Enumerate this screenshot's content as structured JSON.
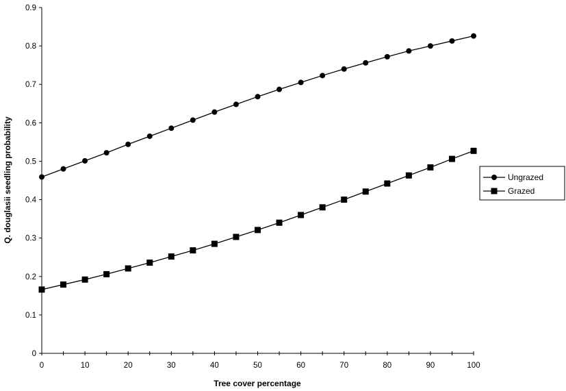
{
  "chart_data": {
    "type": "line",
    "title": "",
    "xlabel": "Tree cover percentage",
    "ylabel": "Q. douglasii seedling probability",
    "xlim": [
      0,
      100
    ],
    "ylim": [
      0,
      0.9
    ],
    "x_ticks": [
      "0",
      "10",
      "20",
      "30",
      "40",
      "50",
      "60",
      "70",
      "80",
      "90",
      "100"
    ],
    "y_ticks": [
      "0",
      "0.1",
      "0.2",
      "0.3",
      "0.4",
      "0.5",
      "0.6",
      "0.7",
      "0.8",
      "0.9"
    ],
    "x_tick_values": [
      0,
      10,
      20,
      30,
      40,
      50,
      60,
      70,
      80,
      90,
      100
    ],
    "y_tick_values": [
      0,
      0.1,
      0.2,
      0.3,
      0.4,
      0.5,
      0.6,
      0.7,
      0.8,
      0.9
    ],
    "grid": false,
    "legend_position": "right",
    "x": [
      0,
      5,
      10,
      15,
      20,
      25,
      30,
      35,
      40,
      45,
      50,
      55,
      60,
      65,
      70,
      75,
      80,
      85,
      90,
      95,
      100
    ],
    "series": [
      {
        "name": "Ungrazed",
        "marker": "circle",
        "color": "#000000",
        "values": [
          0.459,
          0.48,
          0.501,
          0.522,
          0.544,
          0.565,
          0.586,
          0.607,
          0.628,
          0.648,
          0.668,
          0.687,
          0.705,
          0.723,
          0.74,
          0.756,
          0.772,
          0.787,
          0.8,
          0.813,
          0.826
        ]
      },
      {
        "name": "Grazed",
        "marker": "square",
        "color": "#000000",
        "values": [
          0.166,
          0.179,
          0.192,
          0.206,
          0.221,
          0.236,
          0.252,
          0.268,
          0.285,
          0.303,
          0.321,
          0.34,
          0.36,
          0.38,
          0.4,
          0.421,
          0.442,
          0.463,
          0.484,
          0.506,
          0.527
        ]
      }
    ]
  }
}
